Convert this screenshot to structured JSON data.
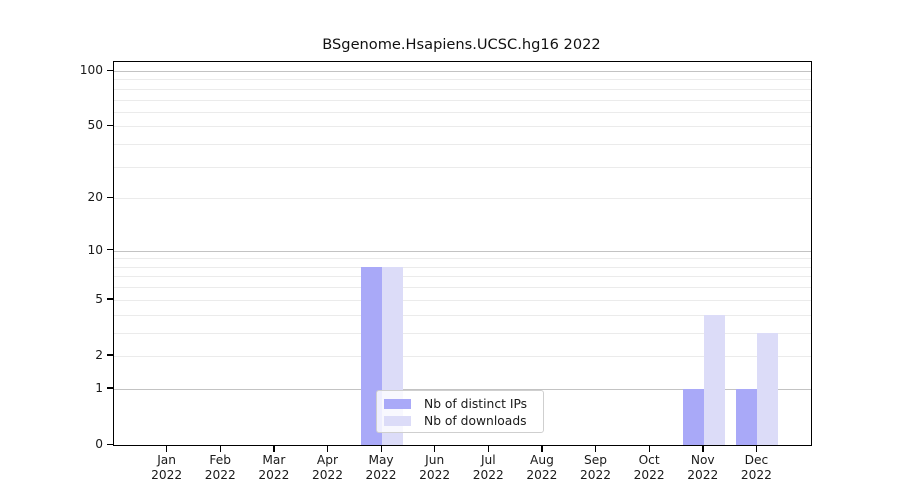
{
  "chart_data": {
    "type": "bar",
    "title": "BSgenome.Hsapiens.UCSC.hg16 2022",
    "categories": [
      "Jan",
      "Feb",
      "Mar",
      "Apr",
      "May",
      "Jun",
      "Jul",
      "Aug",
      "Sep",
      "Oct",
      "Nov",
      "Dec"
    ],
    "category_year": "2022",
    "series": [
      {
        "name": "Nb of distinct IPs",
        "color": "#a9a9f8",
        "values": [
          0,
          0,
          0,
          0,
          8,
          0,
          0,
          0,
          0,
          0,
          1,
          1
        ]
      },
      {
        "name": "Nb of downloads",
        "color": "#dcdcf8",
        "values": [
          0,
          0,
          0,
          0,
          8,
          0,
          0,
          0,
          0,
          0,
          4,
          3
        ]
      }
    ],
    "yscale": "log1p",
    "ylim": [
      0,
      113
    ],
    "y_ticks": [
      0,
      1,
      2,
      5,
      10,
      20,
      50,
      100
    ],
    "gridlines": {
      "major": [
        1,
        10,
        100
      ],
      "minor": [
        2,
        3,
        4,
        5,
        6,
        7,
        8,
        9,
        20,
        30,
        40,
        50,
        60,
        70,
        80,
        90
      ],
      "major_color": "#c3c3c3",
      "minor_color": "#ebebeb"
    },
    "legend": {
      "position": "inside-bottom-center",
      "entries": [
        "Nb of distinct IPs",
        "Nb of downloads"
      ]
    },
    "colors": {
      "axis": "#000000",
      "text": "#1a1a1a",
      "background": "#ffffff"
    }
  }
}
